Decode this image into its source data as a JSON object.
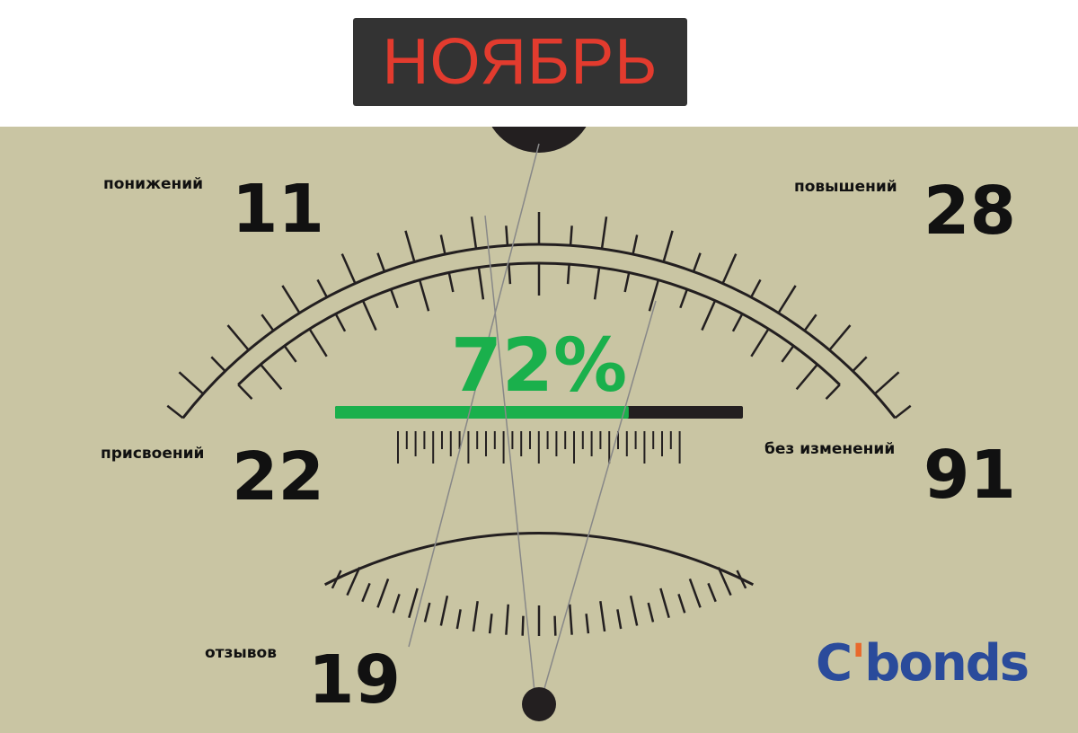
{
  "title": "НОЯБРЬ",
  "percent": {
    "label": "72%",
    "value": 72
  },
  "stats": [
    {
      "label": "понижений",
      "value": "11"
    },
    {
      "label": "повышений",
      "value": "28"
    },
    {
      "label": "присвоений",
      "value": "22"
    },
    {
      "label": "без изменений",
      "value": "91"
    },
    {
      "label": "отзывов",
      "value": "19"
    }
  ],
  "logo": {
    "text": "Cbonds"
  },
  "colors": {
    "title_text": "#e23b2e",
    "accent": "#1ab04c",
    "background": "#c9c5a3",
    "logo": "#2a4b9b",
    "logo_accent": "#e8692c"
  }
}
